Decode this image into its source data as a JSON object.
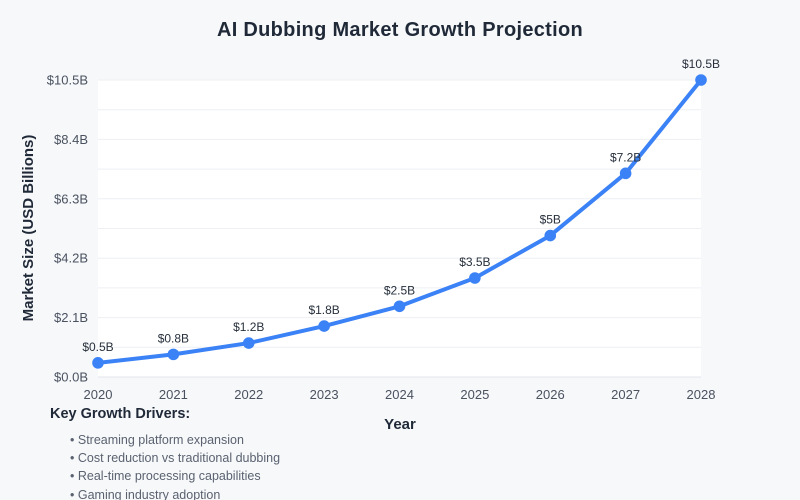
{
  "page": {
    "background_color": "#f7f8fa"
  },
  "chart_data": {
    "type": "line",
    "title": "AI Dubbing Market Growth Projection",
    "xlabel": "Year",
    "ylabel": "Market Size (USD Billions)",
    "categories": [
      2020,
      2021,
      2022,
      2023,
      2024,
      2025,
      2026,
      2027,
      2028
    ],
    "values": [
      0.5,
      0.8,
      1.2,
      1.8,
      2.5,
      3.5,
      5,
      7.2,
      10.5
    ],
    "point_labels": [
      "$0.5B",
      "$0.8B",
      "$1.2B",
      "$1.8B",
      "$2.5B",
      "$3.5B",
      "$5B",
      "$7.2B",
      "$10.5B"
    ],
    "ylim": [
      0,
      10.5
    ],
    "yticks": {
      "values": [
        0,
        2.1,
        4.2,
        6.3,
        8.4,
        10.5
      ],
      "labels": [
        "$0.0B",
        "$2.1B",
        "$4.2B",
        "$6.3B",
        "$8.4B",
        "$10.5B"
      ]
    },
    "grid": "horizontal major and minor gridlines, white plot background",
    "legend_position": "none",
    "line_color": "#3b82f6"
  },
  "drivers": {
    "heading": "Key Growth Drivers:",
    "items": [
      "Streaming platform expansion",
      "Cost reduction vs traditional dubbing",
      "Real-time processing capabilities",
      "Gaming industry adoption"
    ]
  }
}
